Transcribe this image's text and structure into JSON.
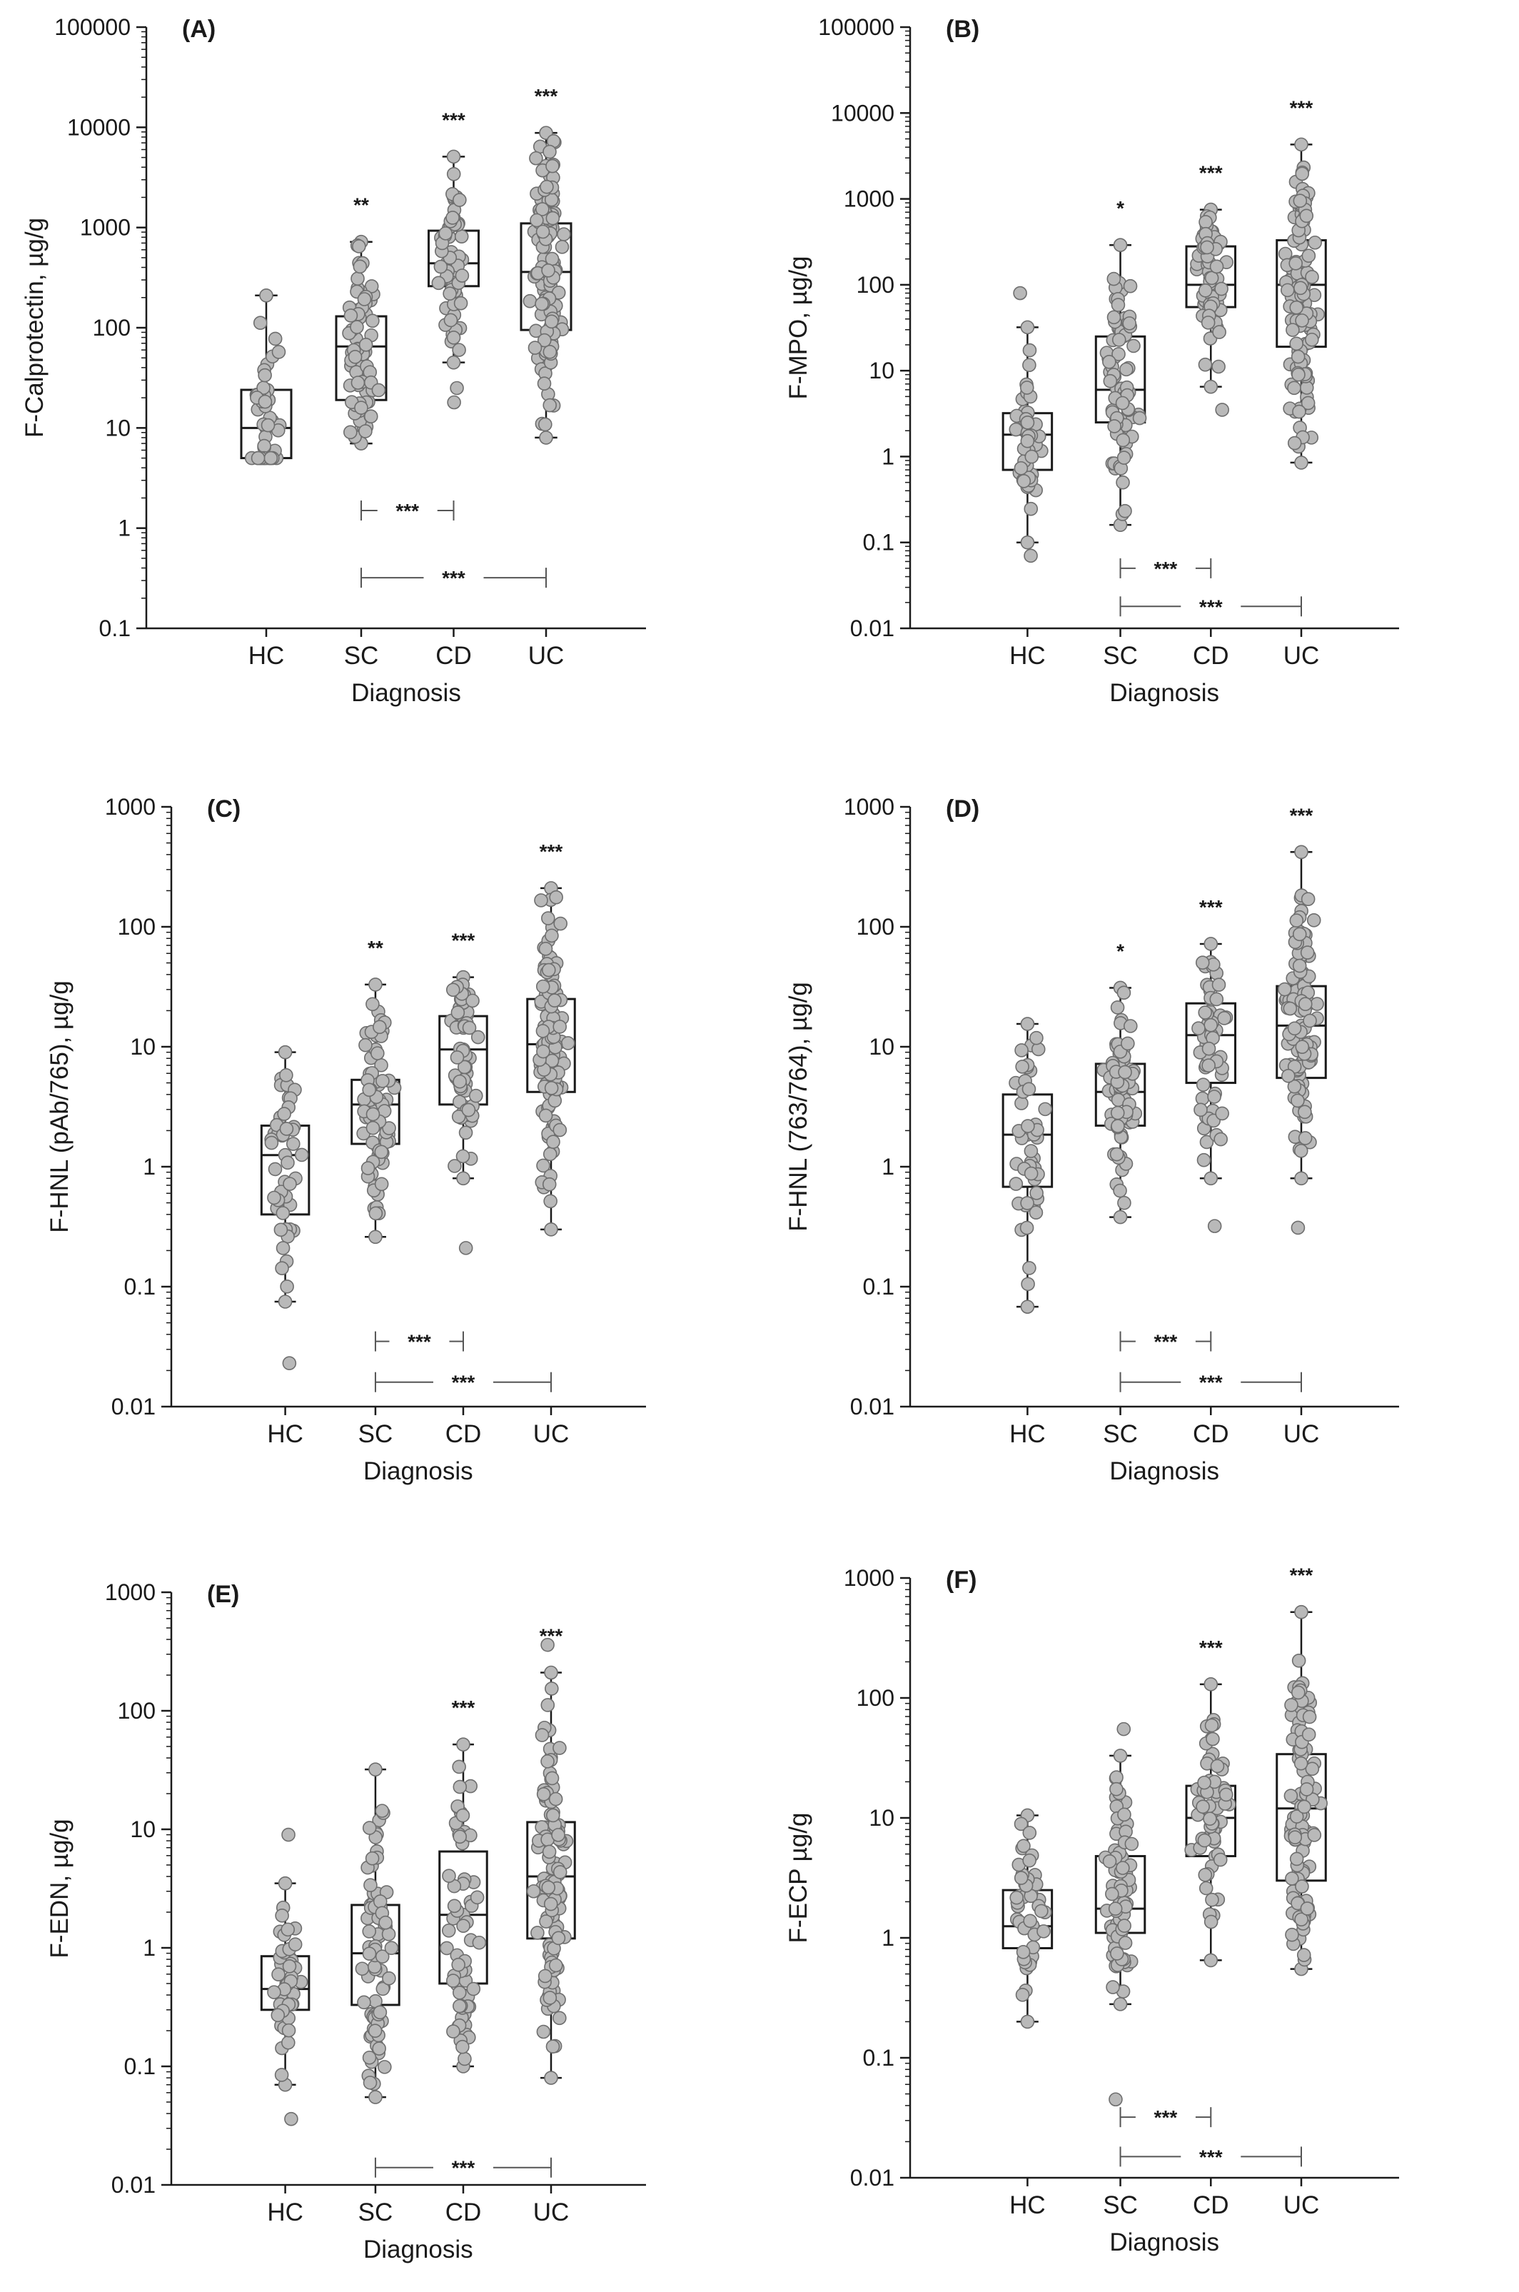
{
  "figure": {
    "colors": {
      "axis": "#1a1a1a",
      "box": "#1a1a1a",
      "point_fill": "#b9b9b9",
      "point_stroke": "#6e6e6e",
      "bracket": "#555555"
    },
    "panels": [
      {
        "id": "A",
        "chart_data": {
          "type": "box",
          "panel_label": "(A)",
          "ylabel": "F-Calprotectin, µg/g",
          "xlabel": "Diagnosis",
          "categories": [
            "HC",
            "SC",
            "CD",
            "UC"
          ],
          "yscale": "log",
          "ylim": [
            0.1,
            100000
          ],
          "yticks": [
            0.1,
            1,
            10,
            100,
            1000,
            10000,
            100000
          ],
          "ytick_labels": [
            "0.1",
            "1",
            "10",
            "100",
            "1000",
            "10000",
            "100000"
          ],
          "boxes": [
            {
              "category": "HC",
              "min": 5,
              "q1": 5,
              "median": 10,
              "q3": 24,
              "max": 210,
              "n": 43
            },
            {
              "category": "SC",
              "min": 7,
              "q1": 19,
              "median": 65,
              "q3": 130,
              "max": 720,
              "n": 75,
              "sig": "**"
            },
            {
              "category": "CD",
              "min": 45,
              "q1": 260,
              "median": 440,
              "q3": 930,
              "max": 5100,
              "extra_points": [
                18,
                25
              ],
              "n": 62,
              "sig": "***"
            },
            {
              "category": "UC",
              "min": 8,
              "q1": 95,
              "median": 360,
              "q3": 1100,
              "max": 8800,
              "n": 110,
              "sig": "***"
            }
          ],
          "brackets": [
            {
              "from": "SC",
              "to": "CD",
              "label": "***",
              "y": 1.5
            },
            {
              "from": "SC",
              "to": "UC",
              "label": "***",
              "y": 0.32
            }
          ]
        }
      },
      {
        "id": "B",
        "chart_data": {
          "type": "box",
          "panel_label": "(B)",
          "ylabel": "F-MPO, µg/g",
          "xlabel": "Diagnosis",
          "categories": [
            "HC",
            "SC",
            "CD",
            "UC"
          ],
          "yscale": "log",
          "ylim": [
            0.01,
            100000
          ],
          "yticks": [
            0.01,
            0.1,
            1,
            10,
            100,
            1000,
            10000,
            100000
          ],
          "ytick_labels": [
            "0.01",
            "0.1",
            "1",
            "10",
            "100",
            "1000",
            "10000",
            "100000"
          ],
          "boxes": [
            {
              "category": "HC",
              "min": 0.1,
              "q1": 0.7,
              "median": 1.8,
              "q3": 3.2,
              "max": 32,
              "extra_points": [
                0.07,
                80
              ],
              "n": 43
            },
            {
              "category": "SC",
              "min": 0.16,
              "q1": 2.5,
              "median": 6,
              "q3": 25,
              "max": 290,
              "n": 75,
              "sig": "*"
            },
            {
              "category": "CD",
              "min": 6.5,
              "q1": 55,
              "median": 100,
              "q3": 280,
              "max": 750,
              "extra_points": [
                3.5
              ],
              "n": 62,
              "sig": "***"
            },
            {
              "category": "UC",
              "min": 0.85,
              "q1": 19,
              "median": 100,
              "q3": 330,
              "max": 4300,
              "n": 110,
              "sig": "***"
            }
          ],
          "brackets": [
            {
              "from": "SC",
              "to": "CD",
              "label": "***",
              "y": 0.05
            },
            {
              "from": "SC",
              "to": "UC",
              "label": "***",
              "y": 0.018
            }
          ]
        }
      },
      {
        "id": "C",
        "chart_data": {
          "type": "box",
          "panel_label": "(C)",
          "ylabel": "F-HNL (pAb/765), µg/g",
          "xlabel": "Diagnosis",
          "categories": [
            "HC",
            "SC",
            "CD",
            "UC"
          ],
          "yscale": "log",
          "ylim": [
            0.01,
            1000
          ],
          "yticks": [
            0.01,
            0.1,
            1,
            10,
            100,
            1000
          ],
          "ytick_labels": [
            "0.01",
            "0.1",
            "1",
            "10",
            "100",
            "1000"
          ],
          "boxes": [
            {
              "category": "HC",
              "min": 0.075,
              "q1": 0.4,
              "median": 1.25,
              "q3": 2.2,
              "max": 9,
              "extra_points": [
                0.023
              ],
              "n": 43
            },
            {
              "category": "SC",
              "min": 0.26,
              "q1": 1.55,
              "median": 3.3,
              "q3": 5.3,
              "max": 33,
              "n": 75,
              "sig": "**"
            },
            {
              "category": "CD",
              "min": 0.8,
              "q1": 3.3,
              "median": 9.5,
              "q3": 18,
              "max": 38,
              "extra_points": [
                0.21
              ],
              "n": 62,
              "sig": "***"
            },
            {
              "category": "UC",
              "min": 0.3,
              "q1": 4.2,
              "median": 10.5,
              "q3": 25,
              "max": 210,
              "n": 110,
              "sig": "***"
            }
          ],
          "brackets": [
            {
              "from": "SC",
              "to": "CD",
              "label": "***",
              "y": 0.035
            },
            {
              "from": "SC",
              "to": "UC",
              "label": "***",
              "y": 0.016
            }
          ]
        }
      },
      {
        "id": "D",
        "chart_data": {
          "type": "box",
          "panel_label": "(D)",
          "ylabel": "F-HNL (763/764), µg/g",
          "xlabel": "Diagnosis",
          "categories": [
            "HC",
            "SC",
            "CD",
            "UC"
          ],
          "yscale": "log",
          "ylim": [
            0.01,
            1000
          ],
          "yticks": [
            0.01,
            0.1,
            1,
            10,
            100,
            1000
          ],
          "ytick_labels": [
            "0.01",
            "0.1",
            "1",
            "10",
            "100",
            "1000"
          ],
          "boxes": [
            {
              "category": "HC",
              "min": 0.068,
              "q1": 0.68,
              "median": 1.85,
              "q3": 4,
              "max": 15.5,
              "n": 43
            },
            {
              "category": "SC",
              "min": 0.38,
              "q1": 2.2,
              "median": 4.2,
              "q3": 7.2,
              "max": 31,
              "n": 75,
              "sig": "*"
            },
            {
              "category": "CD",
              "min": 0.8,
              "q1": 5,
              "median": 12.5,
              "q3": 23,
              "max": 72,
              "extra_points": [
                0.32
              ],
              "n": 62,
              "sig": "***"
            },
            {
              "category": "UC",
              "min": 0.8,
              "q1": 5.5,
              "median": 15,
              "q3": 32,
              "max": 420,
              "extra_points": [
                0.31
              ],
              "n": 110,
              "sig": "***"
            }
          ],
          "brackets": [
            {
              "from": "SC",
              "to": "CD",
              "label": "***",
              "y": 0.035
            },
            {
              "from": "SC",
              "to": "UC",
              "label": "***",
              "y": 0.016
            }
          ]
        }
      },
      {
        "id": "E",
        "chart_data": {
          "type": "box",
          "panel_label": "(E)",
          "ylabel": "F-EDN, µg/g",
          "xlabel": "Diagnosis",
          "categories": [
            "HC",
            "SC",
            "CD",
            "UC"
          ],
          "yscale": "log",
          "ylim": [
            0.01,
            1000
          ],
          "yticks": [
            0.01,
            0.1,
            1,
            10,
            100,
            1000
          ],
          "ytick_labels": [
            "0.01",
            "0.1",
            "1",
            "10",
            "100",
            "1000"
          ],
          "boxes": [
            {
              "category": "HC",
              "min": 0.07,
              "q1": 0.3,
              "median": 0.45,
              "q3": 0.85,
              "max": 3.5,
              "extra_points": [
                0.036,
                9
              ],
              "n": 43
            },
            {
              "category": "SC",
              "min": 0.055,
              "q1": 0.33,
              "median": 0.9,
              "q3": 2.3,
              "max": 32,
              "n": 75
            },
            {
              "category": "CD",
              "min": 0.1,
              "q1": 0.5,
              "median": 1.9,
              "q3": 6.5,
              "max": 52,
              "n": 62,
              "sig": "***"
            },
            {
              "category": "UC",
              "min": 0.08,
              "q1": 1.2,
              "median": 4,
              "q3": 11.5,
              "max": 210,
              "extra_points": [
                360
              ],
              "n": 110,
              "sig": "***"
            }
          ],
          "brackets": [
            {
              "from": "SC",
              "to": "UC",
              "label": "***",
              "y": 0.014
            }
          ]
        }
      },
      {
        "id": "F",
        "chart_data": {
          "type": "box",
          "panel_label": "(F)",
          "ylabel": "F-ECP µg/g",
          "xlabel": "Diagnosis",
          "categories": [
            "HC",
            "SC",
            "CD",
            "UC"
          ],
          "yscale": "log",
          "ylim": [
            0.01,
            1000
          ],
          "yticks": [
            0.01,
            0.1,
            1,
            10,
            100,
            1000
          ],
          "ytick_labels": [
            "0.01",
            "0.1",
            "1",
            "10",
            "100",
            "1000"
          ],
          "boxes": [
            {
              "category": "HC",
              "min": 0.2,
              "q1": 0.82,
              "median": 1.25,
              "q3": 2.5,
              "max": 10.5,
              "n": 43
            },
            {
              "category": "SC",
              "min": 0.28,
              "q1": 1.1,
              "median": 1.75,
              "q3": 4.8,
              "max": 33,
              "extra_points": [
                0.045,
                55
              ],
              "n": 75
            },
            {
              "category": "CD",
              "min": 0.65,
              "q1": 4.8,
              "median": 10,
              "q3": 18.5,
              "max": 130,
              "n": 62,
              "sig": "***"
            },
            {
              "category": "UC",
              "min": 0.55,
              "q1": 3,
              "median": 12,
              "q3": 34,
              "max": 520,
              "n": 110,
              "sig": "***"
            }
          ],
          "brackets": [
            {
              "from": "SC",
              "to": "CD",
              "label": "***",
              "y": 0.032
            },
            {
              "from": "SC",
              "to": "UC",
              "label": "***",
              "y": 0.015
            }
          ]
        }
      }
    ]
  }
}
